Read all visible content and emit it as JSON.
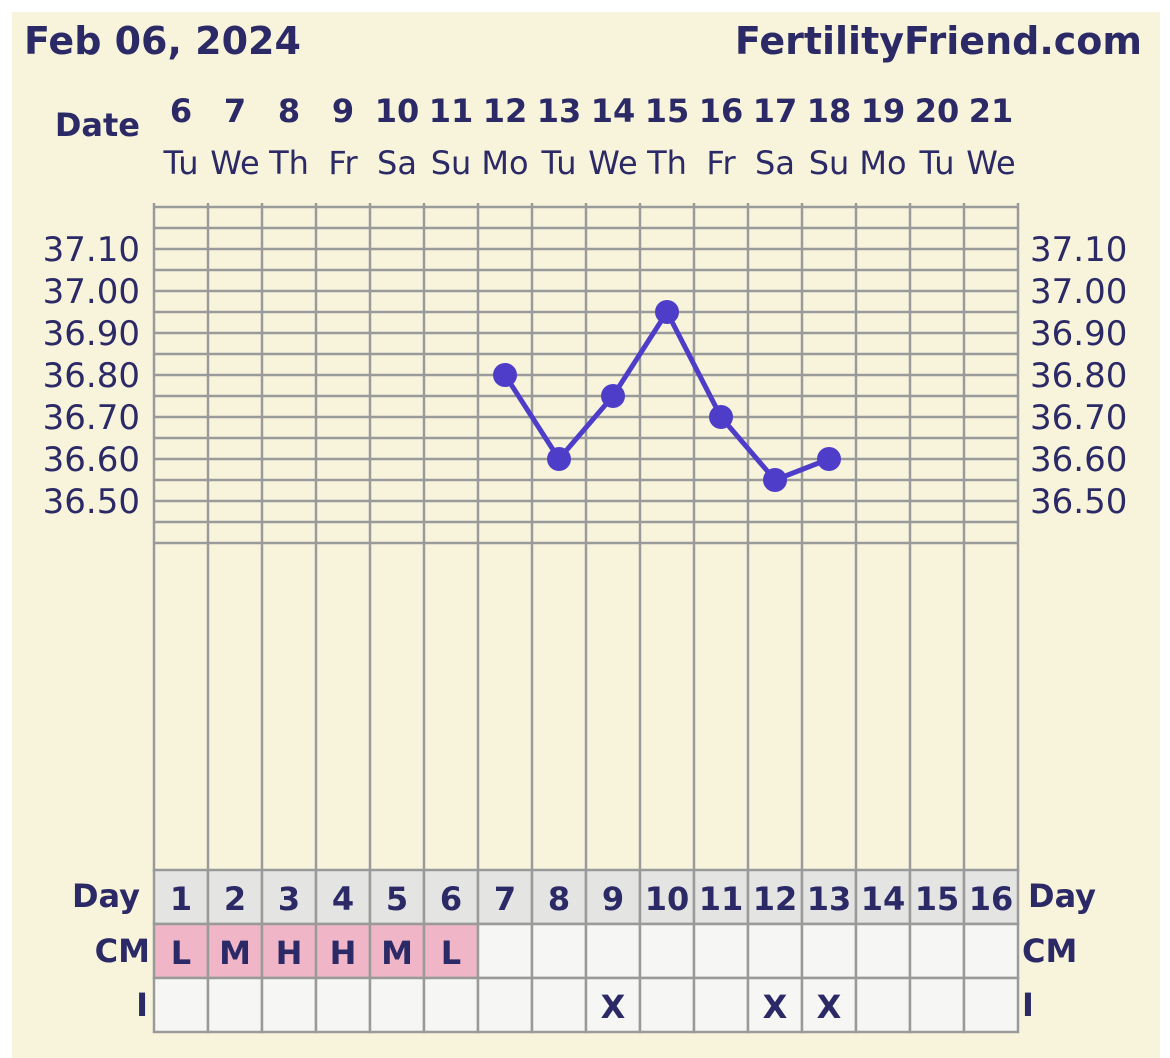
{
  "header": {
    "date": "Feb 06, 2024",
    "site": "FertilityFriend.com"
  },
  "row_labels": {
    "date": "Date",
    "day": "Day",
    "cm": "CM",
    "intercourse": "I"
  },
  "colors": {
    "background": "#f8f4dc",
    "grid": "#9a9a9a",
    "line": "#4d3dc8",
    "text": "#2b2a66",
    "cm_fill": "#f0b6c8",
    "day_row_fill": "#e4e4e2",
    "table_fill": "#f6f6f4"
  },
  "chart_data": {
    "type": "line",
    "title": "",
    "xlabel": "",
    "ylabel": "",
    "ylim": [
      36.4,
      37.2
    ],
    "y_ticks": [
      "37.10",
      "37.00",
      "36.90",
      "36.80",
      "36.70",
      "36.60",
      "36.50"
    ],
    "y_tick_values": [
      37.1,
      37.0,
      36.9,
      36.8,
      36.7,
      36.6,
      36.5
    ],
    "dates": [
      "6",
      "7",
      "8",
      "9",
      "10",
      "11",
      "12",
      "13",
      "14",
      "15",
      "16",
      "17",
      "18",
      "19",
      "20",
      "21"
    ],
    "weekdays": [
      "Tu",
      "We",
      "Th",
      "Fr",
      "Sa",
      "Su",
      "Mo",
      "Tu",
      "We",
      "Th",
      "Fr",
      "Sa",
      "Su",
      "Mo",
      "Tu",
      "We"
    ],
    "cycle_days": [
      "1",
      "2",
      "3",
      "4",
      "5",
      "6",
      "7",
      "8",
      "9",
      "10",
      "11",
      "12",
      "13",
      "14",
      "15",
      "16"
    ],
    "temperature": [
      null,
      null,
      null,
      null,
      null,
      null,
      36.8,
      36.6,
      36.75,
      36.95,
      36.7,
      36.55,
      36.6,
      null,
      null,
      null
    ],
    "cervical_mucus": [
      "L",
      "M",
      "H",
      "H",
      "M",
      "L",
      "",
      "",
      "",
      "",
      "",
      "",
      "",
      "",
      "",
      ""
    ],
    "intercourse": [
      "",
      "",
      "",
      "",
      "",
      "",
      "",
      "",
      "X",
      "",
      "",
      "X",
      "X",
      "",
      "",
      ""
    ],
    "grid": true
  }
}
